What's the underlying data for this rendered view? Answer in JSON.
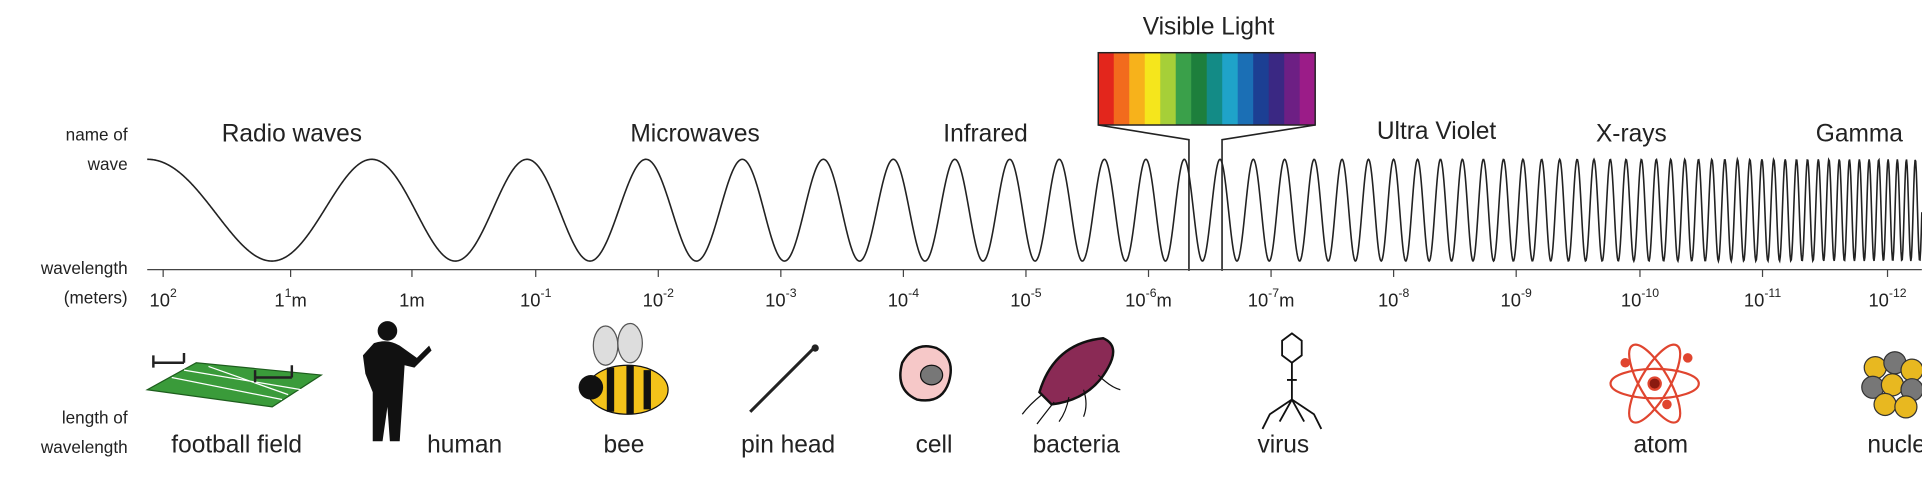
{
  "side_labels": [
    "name of",
    "wave",
    "wavelength",
    "(meters)",
    "length of",
    "wavelength"
  ],
  "wave_names": [
    "Radio waves",
    "Microwaves",
    "Infrared",
    "Ultra Violet",
    "X-rays",
    "Gamma"
  ],
  "visible_light": "Visible Light",
  "wavelength_ticks": [
    {
      "base": "10",
      "exp": "2"
    },
    {
      "base": "1",
      "exp": "1",
      "unit": "m"
    },
    {
      "base": "1m"
    },
    {
      "base": "10",
      "exp": "-1"
    },
    {
      "base": "10",
      "exp": "-2"
    },
    {
      "base": "10",
      "exp": "-3"
    },
    {
      "base": "10",
      "exp": "-4"
    },
    {
      "base": "10",
      "exp": "-5"
    },
    {
      "base": "10",
      "exp": "-6",
      "unit": "m"
    },
    {
      "base": "10",
      "exp": "-7",
      "unit": "m"
    },
    {
      "base": "10",
      "exp": "-8"
    },
    {
      "base": "10",
      "exp": "-9"
    },
    {
      "base": "10",
      "exp": "-10"
    },
    {
      "base": "10",
      "exp": "-11"
    },
    {
      "base": "10",
      "exp": "-12"
    }
  ],
  "objects": [
    "football field",
    "human",
    "bee",
    "pin head",
    "cell",
    "bacteria",
    "virus",
    "atom",
    "nucleus"
  ]
}
